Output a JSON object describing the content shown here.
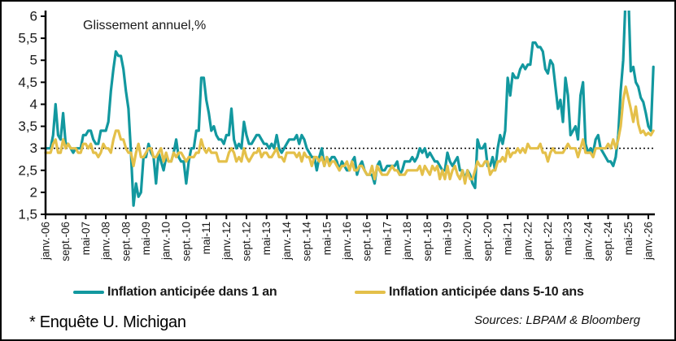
{
  "chart_data": {
    "type": "line",
    "title": "",
    "annotation": "Glissement annuel,%",
    "xlabel": "",
    "ylabel": "",
    "ylim": [
      1.5,
      6
    ],
    "grid": "off",
    "legend_position": "bottom",
    "reference_line": 3.0,
    "y_ticks": {
      "values": [
        6,
        5.5,
        5,
        4.5,
        4,
        3.5,
        3,
        2.5,
        2,
        1.5
      ],
      "labels": [
        "6",
        "5,5",
        "5",
        "4,5",
        "4",
        "3,5",
        "3",
        "2,5",
        "2",
        "1,5"
      ]
    },
    "x_tick_interval_months": 8,
    "x_tick_labels": [
      "janv.-06",
      "sept.-06",
      "mai-07",
      "janv.-08",
      "sept.-08",
      "mai-09",
      "janv.-10",
      "sept.-10",
      "mai-11",
      "janv.-12",
      "sept.-12",
      "mai-13",
      "janv.-14",
      "sept.-14",
      "mai-15",
      "janv.-16",
      "sept.-16",
      "mai-17",
      "janv.-18",
      "sept.-18",
      "mai-19",
      "janv.-20",
      "sept.-20",
      "mai-21",
      "janv.-22",
      "sept.-22",
      "mai-23",
      "janv.-24",
      "sept.-24",
      "mai-25",
      "janv.-26"
    ],
    "series": [
      {
        "name": "Inflation anticipée dans 1 an",
        "color": "#12989f",
        "start": "janv.-06",
        "frequency": "monthly",
        "values": [
          3.0,
          3.0,
          3.0,
          3.3,
          4.0,
          3.3,
          3.2,
          3.8,
          3.1,
          3.1,
          3.0,
          2.9,
          3.0,
          3.0,
          3.0,
          3.3,
          3.3,
          3.4,
          3.4,
          3.2,
          3.1,
          3.1,
          3.4,
          3.4,
          3.4,
          3.6,
          4.3,
          4.8,
          5.2,
          5.1,
          5.1,
          4.8,
          4.3,
          3.9,
          2.9,
          1.7,
          2.2,
          1.9,
          2.0,
          2.8,
          2.8,
          3.1,
          2.9,
          2.8,
          2.2,
          2.9,
          2.7,
          2.5,
          2.8,
          2.7,
          2.7,
          2.9,
          3.2,
          2.8,
          2.7,
          2.7,
          2.2,
          2.7,
          3.0,
          3.0,
          3.4,
          3.4,
          4.6,
          4.6,
          4.1,
          3.8,
          3.4,
          3.5,
          3.3,
          3.2,
          3.2,
          3.1,
          3.3,
          3.3,
          3.9,
          3.2,
          3.0,
          3.1,
          3.0,
          3.6,
          3.3,
          3.1,
          3.1,
          3.2,
          3.3,
          3.3,
          3.2,
          3.1,
          3.1,
          3.0,
          3.1,
          3.0,
          3.3,
          3.0,
          2.9,
          3.0,
          3.1,
          3.2,
          3.2,
          3.2,
          3.3,
          3.1,
          3.3,
          3.2,
          3.0,
          2.9,
          2.8,
          2.8,
          2.5,
          2.8,
          3.0,
          2.6,
          2.8,
          2.7,
          2.8,
          2.8,
          2.7,
          2.5,
          2.7,
          2.6,
          2.5,
          2.5,
          2.7,
          2.8,
          2.4,
          2.6,
          2.7,
          2.5,
          2.4,
          2.4,
          2.4,
          2.2,
          2.6,
          2.7,
          2.5,
          2.5,
          2.6,
          2.6,
          2.6,
          2.6,
          2.7,
          2.4,
          2.5,
          2.7,
          2.7,
          2.7,
          2.8,
          2.7,
          2.8,
          3.0,
          2.9,
          3.0,
          2.8,
          2.9,
          2.8,
          2.7,
          2.7,
          2.6,
          2.5,
          2.5,
          2.9,
          2.7,
          2.6,
          2.7,
          2.8,
          2.5,
          2.5,
          2.3,
          2.5,
          2.4,
          2.2,
          2.1,
          3.2,
          3.0,
          3.0,
          3.1,
          2.6,
          2.6,
          2.8,
          2.5,
          3.0,
          3.3,
          3.1,
          3.4,
          4.6,
          4.2,
          4.7,
          4.6,
          4.6,
          4.8,
          4.9,
          4.8,
          4.9,
          4.9,
          5.4,
          5.4,
          5.3,
          5.3,
          5.2,
          4.8,
          4.7,
          5.0,
          4.9,
          4.4,
          3.9,
          4.1,
          3.6,
          4.6,
          4.2,
          3.3,
          3.4,
          3.5,
          3.2,
          4.2,
          4.5,
          3.1,
          2.9,
          3.0,
          2.9,
          3.2,
          3.3,
          3.0,
          2.9,
          2.8,
          2.7,
          2.7,
          2.6,
          2.8,
          3.3,
          4.3,
          5.0,
          6.5,
          6.6,
          4.75,
          4.85,
          4.5,
          4.4,
          4.15,
          4.05,
          3.8,
          3.5,
          3.4,
          4.85
        ]
      },
      {
        "name": "Inflation anticipée dans 5-10 ans",
        "color": "#e4c04a",
        "start": "janv.-06",
        "frequency": "monthly",
        "values": [
          2.9,
          2.9,
          2.9,
          3.1,
          3.2,
          2.9,
          2.9,
          3.2,
          3.0,
          3.1,
          3.0,
          3.0,
          3.0,
          2.9,
          2.9,
          3.1,
          3.1,
          3.0,
          3.1,
          2.9,
          2.9,
          2.8,
          2.9,
          3.1,
          3.0,
          3.0,
          2.9,
          3.2,
          3.4,
          3.4,
          3.2,
          3.2,
          3.0,
          2.9,
          2.9,
          2.6,
          2.9,
          3.1,
          2.8,
          2.8,
          2.9,
          3.0,
          3.0,
          2.8,
          2.8,
          2.9,
          3.0,
          2.7,
          2.9,
          2.7,
          2.7,
          2.9,
          2.8,
          2.9,
          2.9,
          2.8,
          2.7,
          2.8,
          2.8,
          2.8,
          2.9,
          2.9,
          3.2,
          3.0,
          2.9,
          3.0,
          2.9,
          2.9,
          2.9,
          2.7,
          2.7,
          2.7,
          2.7,
          2.9,
          3.0,
          2.9,
          2.7,
          2.8,
          2.7,
          3.0,
          2.8,
          2.7,
          2.8,
          2.9,
          2.9,
          3.0,
          2.8,
          2.9,
          2.9,
          2.8,
          2.8,
          2.9,
          3.0,
          2.8,
          2.8,
          2.7,
          2.9,
          2.9,
          2.9,
          2.9,
          2.8,
          2.9,
          2.7,
          2.9,
          2.8,
          2.8,
          2.6,
          2.8,
          2.8,
          2.7,
          2.8,
          2.6,
          2.8,
          2.6,
          2.7,
          2.7,
          2.6,
          2.5,
          2.6,
          2.6,
          2.7,
          2.5,
          2.7,
          2.5,
          2.5,
          2.6,
          2.6,
          2.5,
          2.4,
          2.4,
          2.6,
          2.3,
          2.6,
          2.5,
          2.4,
          2.4,
          2.4,
          2.5,
          2.6,
          2.5,
          2.5,
          2.4,
          2.4,
          2.4,
          2.5,
          2.5,
          2.5,
          2.5,
          2.5,
          2.6,
          2.4,
          2.6,
          2.5,
          2.4,
          2.6,
          2.5,
          2.6,
          2.3,
          2.5,
          2.3,
          2.6,
          2.3,
          2.5,
          2.6,
          2.4,
          2.3,
          2.5,
          2.2,
          2.5,
          2.3,
          2.3,
          2.5,
          2.7,
          2.6,
          2.6,
          2.7,
          2.7,
          2.4,
          2.5,
          2.5,
          2.7,
          2.7,
          2.8,
          2.7,
          3.0,
          2.8,
          2.9,
          2.9,
          3.0,
          2.9,
          3.0,
          2.9,
          3.1,
          3.0,
          3.0,
          3.0,
          3.0,
          3.1,
          2.9,
          2.9,
          2.7,
          2.9,
          3.0,
          2.9,
          2.9,
          2.9,
          2.9,
          3.0,
          3.1,
          3.0,
          3.0,
          3.0,
          2.8,
          3.0,
          3.2,
          2.9,
          2.9,
          2.9,
          2.8,
          3.0,
          3.0,
          3.0,
          3.0,
          3.0,
          3.1,
          3.0,
          3.2,
          3.0,
          3.2,
          3.5,
          4.1,
          4.4,
          4.15,
          3.9,
          3.6,
          3.95,
          3.55,
          3.35,
          3.4,
          3.3,
          3.35,
          3.3,
          3.4
        ]
      }
    ]
  },
  "footer": {
    "note": "* Enquête U. Michigan",
    "sources": "Sources: LBPAM & Bloomberg"
  }
}
